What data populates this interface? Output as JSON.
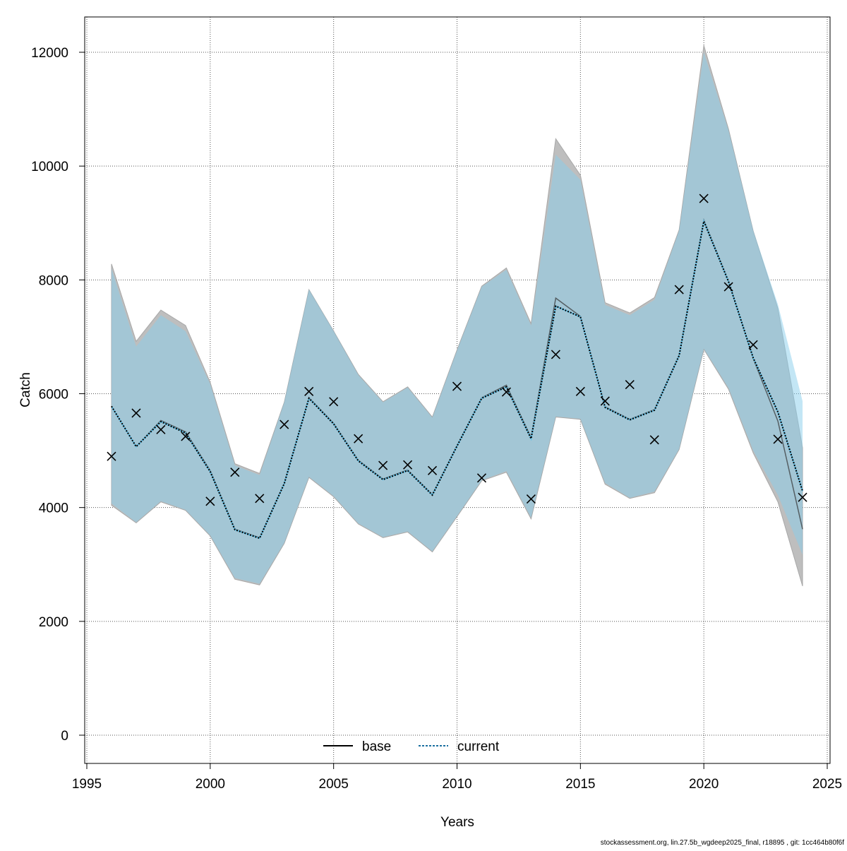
{
  "chart_data": {
    "type": "line",
    "title": "",
    "xlabel": "Years",
    "ylabel": "Catch",
    "xlim": [
      1995,
      2025
    ],
    "ylim": [
      -500,
      12600
    ],
    "xticks": [
      1995,
      2000,
      2005,
      2010,
      2015,
      2020,
      2025
    ],
    "yticks": [
      0,
      2000,
      4000,
      6000,
      8000,
      10000,
      12000
    ],
    "grid": true,
    "legend_position": "bottom-center",
    "x": [
      1996,
      1997,
      1998,
      1999,
      2000,
      2001,
      2002,
      2003,
      2004,
      2005,
      2006,
      2007,
      2008,
      2009,
      2010,
      2011,
      2012,
      2013,
      2014,
      2015,
      2016,
      2017,
      2018,
      2019,
      2020,
      2021,
      2022,
      2023,
      2024
    ],
    "observed": {
      "marker": "x",
      "values": [
        4900,
        5660,
        5370,
        5250,
        4110,
        4620,
        4160,
        5460,
        6040,
        5860,
        5210,
        4740,
        4750,
        4650,
        6130,
        4520,
        6030,
        4150,
        6690,
        6040,
        5870,
        6160,
        5190,
        7830,
        9430,
        7880,
        6860,
        5200,
        4180
      ]
    },
    "series": [
      {
        "name": "base",
        "color": "#000000",
        "band_color": "#bebebe",
        "linestyle": "solid",
        "values": [
          5780,
          5070,
          5530,
          5330,
          4650,
          3620,
          3470,
          4430,
          5930,
          5480,
          4830,
          4500,
          4660,
          4230,
          5090,
          5930,
          6150,
          5230,
          7680,
          7360,
          5770,
          5550,
          5720,
          6680,
          9050,
          7980,
          6620,
          5520,
          3620
        ],
        "upper": [
          8280,
          6920,
          7470,
          7200,
          6200,
          4770,
          4600,
          5850,
          7830,
          7100,
          6340,
          5860,
          6120,
          5590,
          6770,
          7890,
          8210,
          7230,
          10480,
          9840,
          7600,
          7420,
          7690,
          8880,
          12120,
          10650,
          8860,
          7500,
          5050
        ],
        "lower": [
          4040,
          3730,
          4100,
          3950,
          3500,
          2740,
          2640,
          3370,
          4530,
          4190,
          3710,
          3470,
          3570,
          3220,
          3840,
          4470,
          4620,
          3800,
          5590,
          5550,
          4410,
          4160,
          4260,
          5020,
          6780,
          6080,
          4960,
          4100,
          2620
        ]
      },
      {
        "name": "current",
        "color": "#1a6fa0",
        "band_color": "#87ceeb",
        "linestyle": "dotted",
        "values": [
          5780,
          5070,
          5510,
          5310,
          4630,
          3610,
          3460,
          4420,
          5920,
          5470,
          4820,
          4490,
          4650,
          4220,
          5080,
          5920,
          6120,
          5210,
          7540,
          7350,
          5760,
          5540,
          5710,
          6670,
          9030,
          7970,
          6630,
          5680,
          4290
        ],
        "upper": [
          8200,
          6830,
          7380,
          7100,
          6170,
          4740,
          4570,
          5850,
          7830,
          7100,
          6330,
          5850,
          6110,
          5580,
          6760,
          7880,
          8180,
          7200,
          10200,
          9760,
          7560,
          7380,
          7650,
          8870,
          12000,
          10630,
          8870,
          7570,
          5870
        ],
        "lower": [
          4070,
          3740,
          4110,
          3960,
          3510,
          2760,
          2660,
          3380,
          4540,
          4200,
          3720,
          3480,
          3580,
          3230,
          3850,
          4480,
          4640,
          3820,
          5600,
          5560,
          4430,
          4170,
          4280,
          5030,
          6790,
          6100,
          5000,
          4220,
          3170
        ]
      }
    ]
  },
  "footer": "stockassessment.org, lin.27.5b_wgdeep2025_final, r18895 , git: 1cc464b80f6f"
}
